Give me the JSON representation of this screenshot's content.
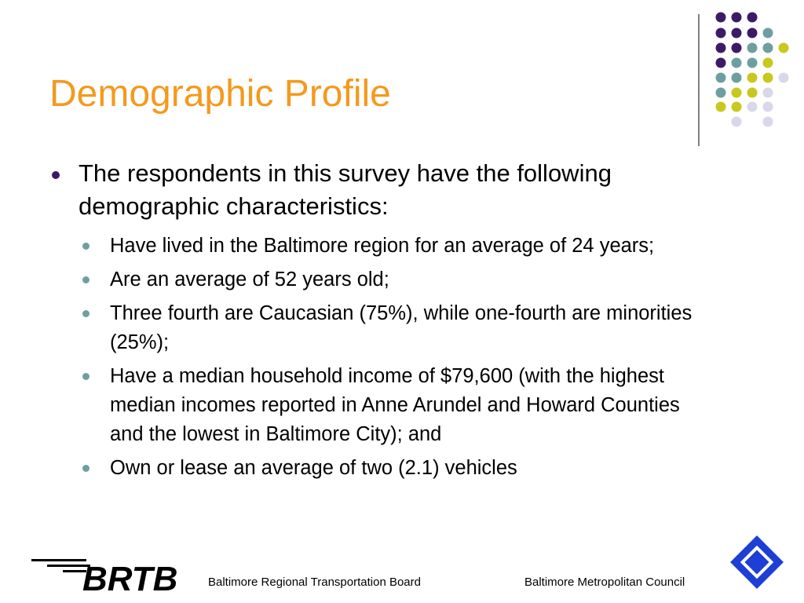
{
  "header": {
    "title": "Demographic Profile"
  },
  "body": {
    "bullet": "The respondents in this survey have the following demographic characteristics:",
    "sub_bullets": [
      "Have lived in the Baltimore region for an average of 24 years;",
      "Are an average of 52 years old;",
      "Three fourth are Caucasian (75%), while one-fourth are minorities (25%);",
      "Have a median household income of $79,600 (with the highest median incomes reported in Anne Arundel and Howard Counties and the lowest in Baltimore City); and",
      "Own or lease an average of two (2.1) vehicles"
    ]
  },
  "footer": {
    "logo": "BRTB",
    "left": "Baltimore Regional Transportation Board",
    "right": "Baltimore Metropolitan Council"
  }
}
